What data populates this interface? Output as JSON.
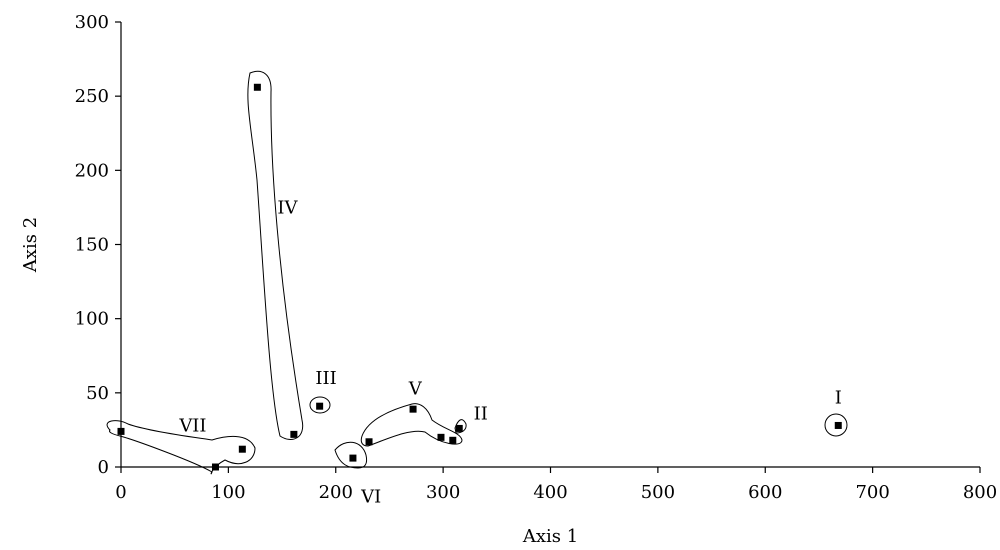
{
  "chart_data": {
    "type": "scatter",
    "xlabel": "Axis 1",
    "ylabel": "Axis 2",
    "xlim": [
      0,
      800
    ],
    "ylim": [
      0,
      300
    ],
    "xticks": [
      0,
      100,
      200,
      300,
      400,
      500,
      600,
      700,
      800
    ],
    "yticks": [
      0,
      50,
      100,
      150,
      200,
      250,
      300
    ],
    "grid": false,
    "marker_color": "#000000",
    "points": [
      {
        "x": 0,
        "y": 24
      },
      {
        "x": 88,
        "y": 0
      },
      {
        "x": 113,
        "y": 12
      },
      {
        "x": 127,
        "y": 256
      },
      {
        "x": 161,
        "y": 22
      },
      {
        "x": 185,
        "y": 41
      },
      {
        "x": 216,
        "y": 6
      },
      {
        "x": 231,
        "y": 17
      },
      {
        "x": 272,
        "y": 39
      },
      {
        "x": 298,
        "y": 20
      },
      {
        "x": 309,
        "y": 18
      },
      {
        "x": 315,
        "y": 26
      },
      {
        "x": 668,
        "y": 28
      }
    ],
    "clusters": [
      {
        "label": "I",
        "members": [
          12
        ],
        "label_pos": [
          668,
          47
        ]
      },
      {
        "label": "II",
        "members": [
          11
        ],
        "label_pos": [
          335,
          36
        ]
      },
      {
        "label": "III",
        "members": [
          5
        ],
        "label_pos": [
          191,
          60
        ]
      },
      {
        "label": "IV",
        "members": [
          3,
          4
        ],
        "label_pos": [
          155,
          175
        ]
      },
      {
        "label": "V",
        "members": [
          7,
          8,
          9,
          10
        ],
        "label_pos": [
          274,
          53
        ]
      },
      {
        "label": "VI",
        "members": [
          6
        ],
        "label_pos": [
          233,
          -20
        ]
      },
      {
        "label": "VII",
        "members": [
          0,
          1,
          2
        ],
        "label_pos": [
          67,
          28
        ]
      }
    ]
  }
}
